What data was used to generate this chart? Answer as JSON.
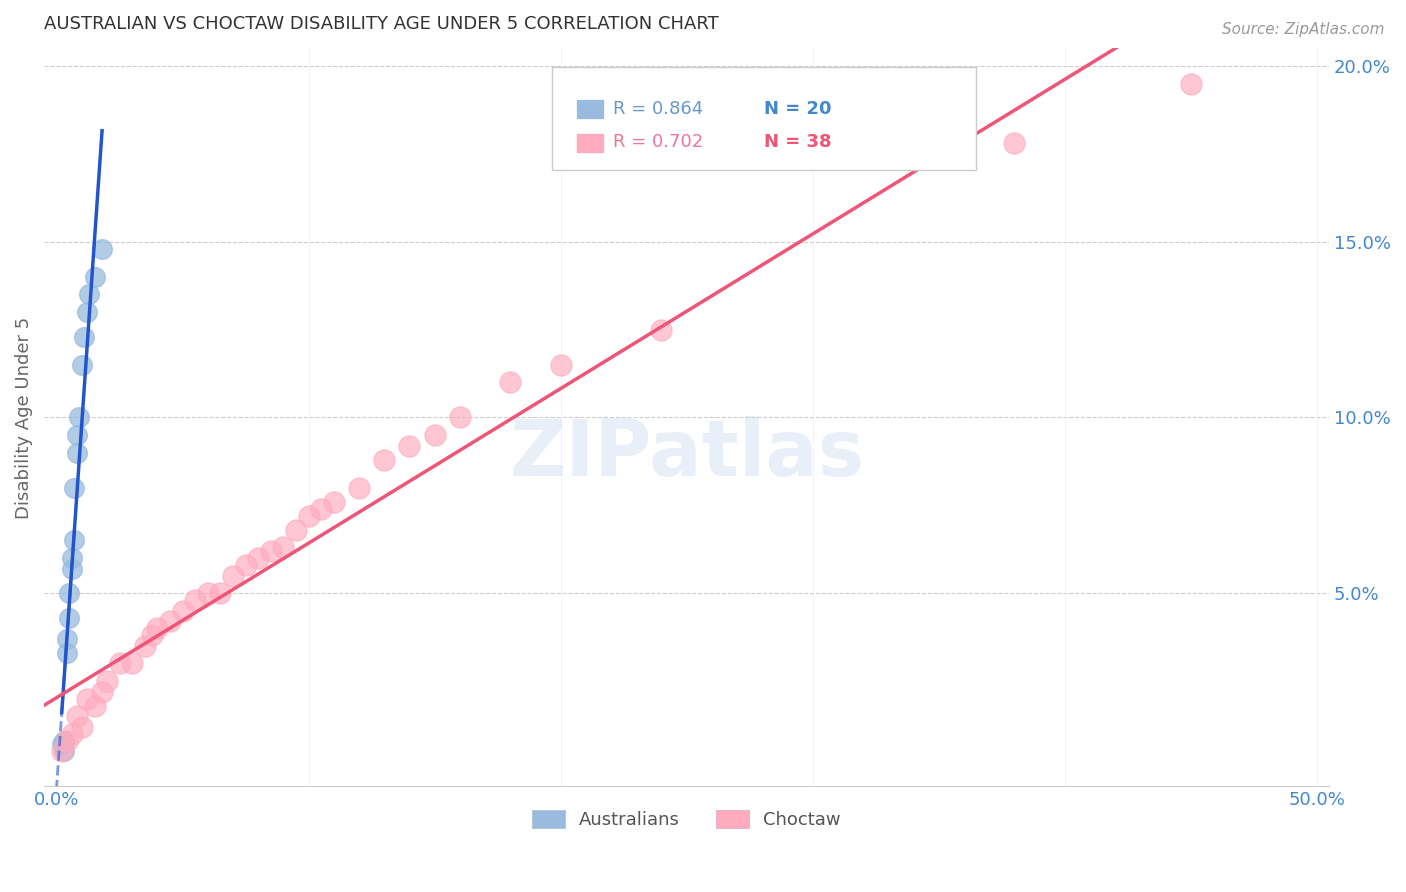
{
  "title": "AUSTRALIAN VS CHOCTAW DISABILITY AGE UNDER 5 CORRELATION CHART",
  "source": "Source: ZipAtlas.com",
  "ylabel": "Disability Age Under 5",
  "xlim": [
    -0.005,
    0.505
  ],
  "ylim": [
    -0.005,
    0.205
  ],
  "blue_color": "#99BBDD",
  "blue_edge_color": "#99BBDD",
  "pink_color": "#FFAABD",
  "pink_edge_color": "#FFAABD",
  "blue_line_color": "#2255CC",
  "pink_line_color": "#EE5577",
  "tick_color": "#4488CC",
  "watermark": "ZIPatlas",
  "australians_x": [
    0.002,
    0.003,
    0.003,
    0.004,
    0.004,
    0.005,
    0.005,
    0.006,
    0.006,
    0.007,
    0.007,
    0.008,
    0.008,
    0.009,
    0.01,
    0.011,
    0.012,
    0.013,
    0.015,
    0.018
  ],
  "australians_y": [
    0.007,
    0.005,
    0.008,
    0.033,
    0.037,
    0.043,
    0.05,
    0.057,
    0.06,
    0.065,
    0.08,
    0.09,
    0.095,
    0.1,
    0.115,
    0.123,
    0.13,
    0.135,
    0.14,
    0.148
  ],
  "choctaw_x": [
    0.002,
    0.004,
    0.006,
    0.008,
    0.01,
    0.012,
    0.015,
    0.018,
    0.02,
    0.025,
    0.03,
    0.035,
    0.038,
    0.04,
    0.045,
    0.05,
    0.055,
    0.06,
    0.065,
    0.07,
    0.075,
    0.08,
    0.085,
    0.09,
    0.095,
    0.1,
    0.105,
    0.11,
    0.12,
    0.13,
    0.14,
    0.15,
    0.16,
    0.18,
    0.2,
    0.24,
    0.38,
    0.45
  ],
  "choctaw_y": [
    0.005,
    0.008,
    0.01,
    0.015,
    0.012,
    0.02,
    0.018,
    0.022,
    0.025,
    0.03,
    0.03,
    0.035,
    0.038,
    0.04,
    0.042,
    0.045,
    0.048,
    0.05,
    0.05,
    0.055,
    0.058,
    0.06,
    0.062,
    0.063,
    0.068,
    0.072,
    0.074,
    0.076,
    0.08,
    0.088,
    0.092,
    0.095,
    0.1,
    0.11,
    0.115,
    0.125,
    0.178,
    0.195
  ]
}
